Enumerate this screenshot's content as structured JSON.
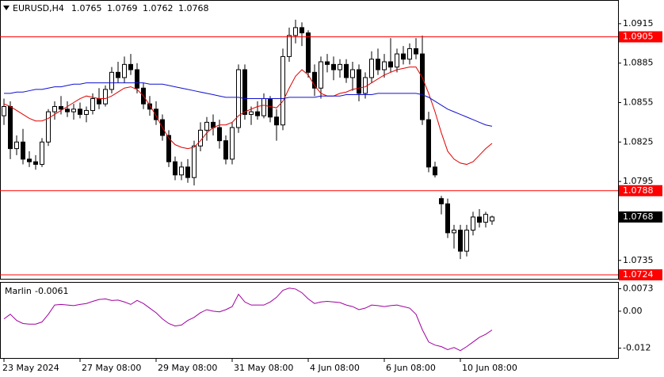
{
  "chart_data": [
    {
      "type": "candlestick",
      "symbol": "EURUSD,H4",
      "ohlc": [
        [
          1.0845,
          1.0858,
          1.0838,
          1.0852
        ],
        [
          1.0852,
          1.0856,
          1.0812,
          1.082
        ],
        [
          1.082,
          1.083,
          1.0815,
          1.0825
        ],
        [
          1.0825,
          1.0835,
          1.0808,
          1.0812
        ],
        [
          1.0812,
          1.0818,
          1.0806,
          1.081
        ],
        [
          1.081,
          1.0815,
          1.0804,
          1.0808
        ],
        [
          1.0808,
          1.0828,
          1.0806,
          1.0825
        ],
        [
          1.0825,
          1.085,
          1.0822,
          1.0848
        ],
        [
          1.0848,
          1.0856,
          1.0842,
          1.0852
        ],
        [
          1.0852,
          1.086,
          1.0846,
          1.085
        ],
        [
          1.085,
          1.0856,
          1.0844,
          1.0848
        ],
        [
          1.0848,
          1.0854,
          1.0842,
          1.085
        ],
        [
          1.085,
          1.0855,
          1.0843,
          1.0846
        ],
        [
          1.0846,
          1.0852,
          1.084,
          1.0849
        ],
        [
          1.0849,
          1.0862,
          1.0846,
          1.0858
        ],
        [
          1.0858,
          1.0866,
          1.085,
          1.0854
        ],
        [
          1.0854,
          1.0868,
          1.0852,
          1.0865
        ],
        [
          1.0865,
          1.0882,
          1.0862,
          1.0878
        ],
        [
          1.0878,
          1.0886,
          1.087,
          1.0874
        ],
        [
          1.0874,
          1.089,
          1.087,
          1.0884
        ],
        [
          1.0884,
          1.0892,
          1.0876,
          1.088
        ],
        [
          1.088,
          1.0885,
          1.0862,
          1.0866
        ],
        [
          1.0866,
          1.087,
          1.085,
          1.0854
        ],
        [
          1.0854,
          1.086,
          1.0845,
          1.085
        ],
        [
          1.085,
          1.0856,
          1.0838,
          1.0842
        ],
        [
          1.0842,
          1.0846,
          1.0826,
          1.083
        ],
        [
          1.083,
          1.0834,
          1.0806,
          1.081
        ],
        [
          1.081,
          1.0814,
          1.0796,
          1.08
        ],
        [
          1.08,
          1.081,
          1.0796,
          1.0806
        ],
        [
          1.0806,
          1.0812,
          1.0794,
          1.0798
        ],
        [
          1.0798,
          1.0826,
          1.0792,
          1.0822
        ],
        [
          1.0822,
          1.084,
          1.0818,
          1.0834
        ],
        [
          1.0834,
          1.0844,
          1.0826,
          1.084
        ],
        [
          1.084,
          1.0846,
          1.083,
          1.0836
        ],
        [
          1.0836,
          1.0842,
          1.082,
          1.0826
        ],
        [
          1.0826,
          1.083,
          1.0808,
          1.0812
        ],
        [
          1.0812,
          1.084,
          1.0808,
          1.0836
        ],
        [
          1.0836,
          1.0884,
          1.0832,
          1.088
        ],
        [
          1.088,
          1.0884,
          1.0842,
          1.0846
        ],
        [
          1.0846,
          1.0852,
          1.0838,
          1.0848
        ],
        [
          1.0848,
          1.0856,
          1.0842,
          1.0845
        ],
        [
          1.0845,
          1.0862,
          1.0843,
          1.0858
        ],
        [
          1.0858,
          1.086,
          1.084,
          1.0844
        ],
        [
          1.0844,
          1.085,
          1.0826,
          1.0838
        ],
        [
          1.0838,
          1.0896,
          1.0834,
          1.089
        ],
        [
          1.089,
          1.0912,
          1.0886,
          1.0906
        ],
        [
          1.0906,
          1.0918,
          1.09,
          1.0912
        ],
        [
          1.0912,
          1.0916,
          1.0898,
          1.0908
        ],
        [
          1.0908,
          1.091,
          1.0874,
          1.0878
        ],
        [
          1.0878,
          1.0884,
          1.086,
          1.0866
        ],
        [
          1.0866,
          1.089,
          1.0858,
          1.0886
        ],
        [
          1.0886,
          1.0892,
          1.0878,
          1.0884
        ],
        [
          1.0884,
          1.089,
          1.0872,
          1.088
        ],
        [
          1.088,
          1.0888,
          1.0874,
          1.0884
        ],
        [
          1.0884,
          1.0888,
          1.087,
          1.0874
        ],
        [
          1.0874,
          1.0886,
          1.0864,
          1.088
        ],
        [
          1.088,
          1.0884,
          1.0856,
          1.0862
        ],
        [
          1.0862,
          1.0878,
          1.0858,
          1.0874
        ],
        [
          1.0874,
          1.0894,
          1.087,
          1.0888
        ],
        [
          1.0888,
          1.0896,
          1.0876,
          1.088
        ],
        [
          1.088,
          1.0892,
          1.0874,
          1.0886
        ],
        [
          1.0886,
          1.0904,
          1.0878,
          1.0882
        ],
        [
          1.0882,
          1.0896,
          1.0878,
          1.0892
        ],
        [
          1.0892,
          1.0898,
          1.0884,
          1.0888
        ],
        [
          1.0888,
          1.09,
          1.0884,
          1.0896
        ],
        [
          1.0896,
          1.0904,
          1.0888,
          1.0892
        ],
        [
          1.0892,
          1.0906,
          1.0838,
          1.0842
        ],
        [
          1.0842,
          1.0848,
          1.0802,
          1.0806
        ],
        [
          1.0806,
          1.081,
          1.0798,
          1.08
        ],
        [
          1.0782,
          1.0784,
          1.077,
          1.0778
        ],
        [
          1.0778,
          1.0782,
          1.0752,
          1.0756
        ],
        [
          1.0756,
          1.0762,
          1.0744,
          1.0758
        ],
        [
          1.0758,
          1.0762,
          1.0736,
          1.0742
        ],
        [
          1.0742,
          1.0762,
          1.0738,
          1.0758
        ],
        [
          1.0758,
          1.0772,
          1.0754,
          1.0768
        ],
        [
          1.0768,
          1.0774,
          1.076,
          1.0764
        ],
        [
          1.0764,
          1.0772,
          1.076,
          1.077
        ],
        [
          1.0765,
          1.0769,
          1.0762,
          1.0768
        ]
      ],
      "series": [
        {
          "color": "#e00000",
          "values": [
            1.0854,
            1.0852,
            1.0849,
            1.0846,
            1.0843,
            1.0841,
            1.0841,
            1.0843,
            1.0846,
            1.0849,
            1.0852,
            1.0855,
            1.0858,
            1.086,
            1.0859,
            1.0858,
            1.0858,
            1.086,
            1.0863,
            1.0866,
            1.0867,
            1.0865,
            1.086,
            1.0853,
            1.0845,
            1.0836,
            1.0828,
            1.0823,
            1.0821,
            1.082,
            1.0821,
            1.0826,
            1.0832,
            1.0836,
            1.0838,
            1.0838,
            1.084,
            1.0845,
            1.0848,
            1.085,
            1.0852,
            1.0853,
            1.0852,
            1.0851,
            1.0856,
            1.0866,
            1.0875,
            1.088,
            1.0876,
            1.0868,
            1.0862,
            1.086,
            1.086,
            1.0862,
            1.0863,
            1.0865,
            1.0866,
            1.0867,
            1.087,
            1.0873,
            1.0876,
            1.0878,
            1.088,
            1.0881,
            1.0882,
            1.0882,
            1.0874,
            1.0862,
            1.0848,
            1.0832,
            1.0818,
            1.0812,
            1.0809,
            1.0808,
            1.081,
            1.0815,
            1.082,
            1.0824
          ]
        },
        {
          "color": "#1010d0",
          "values": [
            1.0862,
            1.0862,
            1.0863,
            1.0863,
            1.0864,
            1.0865,
            1.0865,
            1.0866,
            1.0867,
            1.0867,
            1.0868,
            1.0869,
            1.0869,
            1.087,
            1.087,
            1.087,
            1.087,
            1.087,
            1.087,
            1.087,
            1.087,
            1.087,
            1.087,
            1.0869,
            1.0869,
            1.0869,
            1.0868,
            1.0867,
            1.0866,
            1.0865,
            1.0864,
            1.0863,
            1.0862,
            1.0861,
            1.086,
            1.0859,
            1.0859,
            1.0859,
            1.0858,
            1.0858,
            1.0858,
            1.0858,
            1.0858,
            1.0858,
            1.0858,
            1.0859,
            1.0859,
            1.0859,
            1.0859,
            1.0859,
            1.086,
            1.086,
            1.086,
            1.086,
            1.0861,
            1.0861,
            1.0861,
            1.0861,
            1.0861,
            1.0862,
            1.0862,
            1.0862,
            1.0862,
            1.0862,
            1.0862,
            1.0862,
            1.0861,
            1.0859,
            1.0856,
            1.0853,
            1.085,
            1.0848,
            1.0846,
            1.0844,
            1.0842,
            1.084,
            1.0838,
            1.0837
          ]
        }
      ],
      "levels": {
        "color": "#ff0000",
        "values": [
          1.0905,
          1.0788,
          1.0724
        ]
      },
      "ylim": [
        1.0721,
        1.0933
      ],
      "yticks": [
        1.0915,
        1.0885,
        1.0855,
        1.0825,
        1.0795,
        1.0735
      ],
      "xticks": [
        {
          "value": 0,
          "label": "23 May 2024"
        },
        {
          "value": 12,
          "label": "27 May 08:00"
        },
        {
          "value": 24,
          "label": "29 May 08:00"
        },
        {
          "value": 36,
          "label": "31 May 08:00"
        },
        {
          "value": 48,
          "label": "4 Jun 08:00"
        },
        {
          "value": 60,
          "label": "6 Jun 08:00"
        },
        {
          "value": 72,
          "label": "10 Jun 08:00"
        }
      ]
    },
    {
      "type": "line",
      "title": "Marlin",
      "color": "#a000a0",
      "values": [
        -0.0025,
        -0.001,
        -0.003,
        -0.004,
        -0.0042,
        -0.0042,
        -0.0035,
        -0.001,
        0.002,
        0.0022,
        0.002,
        0.0018,
        0.0022,
        0.0025,
        0.0032,
        0.0038,
        0.004,
        0.0035,
        0.0036,
        0.003,
        0.0022,
        0.0035,
        0.0025,
        0.001,
        -0.0005,
        -0.0025,
        -0.004,
        -0.0048,
        -0.0045,
        -0.003,
        -0.002,
        -0.0005,
        0.0005,
        0.0,
        -0.0002,
        0.0005,
        0.0015,
        0.0055,
        0.003,
        0.002,
        0.002,
        0.002,
        0.003,
        0.0045,
        0.0068,
        0.0075,
        0.0072,
        0.006,
        0.004,
        0.0025,
        0.003,
        0.0032,
        0.003,
        0.0028,
        0.002,
        0.0015,
        0.0005,
        0.001,
        0.002,
        0.0018,
        0.0015,
        0.0018,
        0.002,
        0.0015,
        0.001,
        -0.001,
        -0.006,
        -0.01,
        -0.011,
        -0.0115,
        -0.0125,
        -0.0118,
        -0.0128,
        -0.0115,
        -0.01,
        -0.0085,
        -0.0075,
        -0.0061
      ],
      "ylim": [
        -0.0152,
        0.0095
      ],
      "yticks": [
        0.0073,
        {
          "value": 0,
          "label": "0.00"
        },
        -0.012
      ]
    }
  ]
}
